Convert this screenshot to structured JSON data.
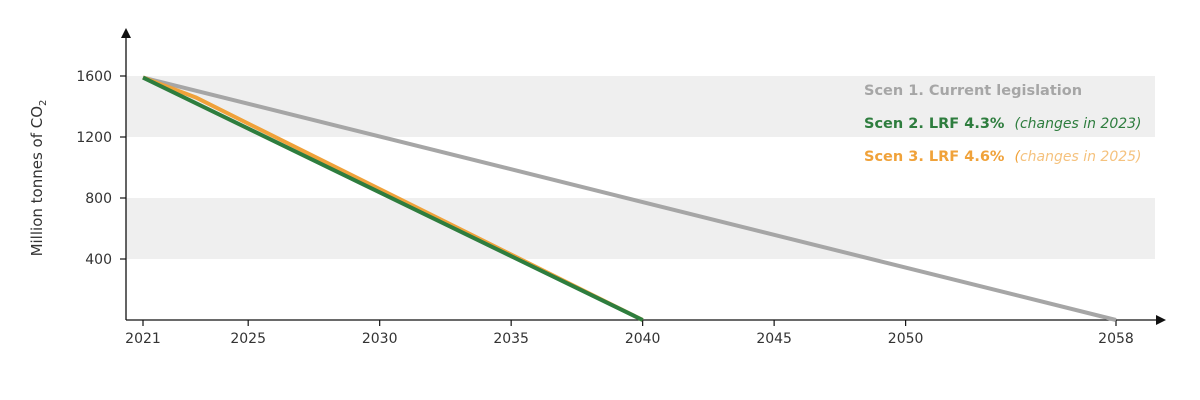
{
  "chart_data": {
    "type": "line",
    "title": "",
    "xlabel": "",
    "ylabel": "Million tonnes of CO",
    "ylabel_subscript": "2",
    "xlim": [
      2021,
      2058
    ],
    "ylim": [
      0,
      1800
    ],
    "x_ticks": [
      "2021",
      "2025",
      "2030",
      "2035",
      "2040",
      "2045",
      "2050",
      "2058"
    ],
    "x_tick_values": [
      2021,
      2025,
      2030,
      2035,
      2040,
      2045,
      2050,
      2058
    ],
    "y_ticks": [
      "400",
      "800",
      "1200",
      "1600"
    ],
    "y_tick_values": [
      400,
      800,
      1200,
      1600
    ],
    "shaded_bands": [
      [
        1200,
        1600
      ],
      [
        400,
        800
      ]
    ],
    "band_color": "#efefef",
    "legend_position": "top-right",
    "series": [
      {
        "name": "Scen 1. Current legislation",
        "note": "",
        "note_open": "",
        "color": "#a6a6a6",
        "x": [
          2021,
          2058
        ],
        "y": [
          1590,
          0
        ]
      },
      {
        "name": "Scen 2. LRF 4.3%",
        "note": "changes in 2023",
        "note_open": "(",
        "note_close": ")",
        "color": "#2e7d3e",
        "note_color": "#2e7d3e",
        "note_open_color": "#2e7d3e",
        "x": [
          2021,
          2040
        ],
        "y": [
          1590,
          0
        ]
      },
      {
        "name": "Scen 3. LRF 4.6%",
        "note": "changes in 2025",
        "note_open": "(",
        "note_close": ")",
        "color": "#f0a23a",
        "note_color": "#f5c27e",
        "note_open_color": "#f0a23a",
        "x": [
          2021,
          2023,
          2040
        ],
        "y": [
          1590,
          1460,
          0
        ]
      }
    ]
  }
}
